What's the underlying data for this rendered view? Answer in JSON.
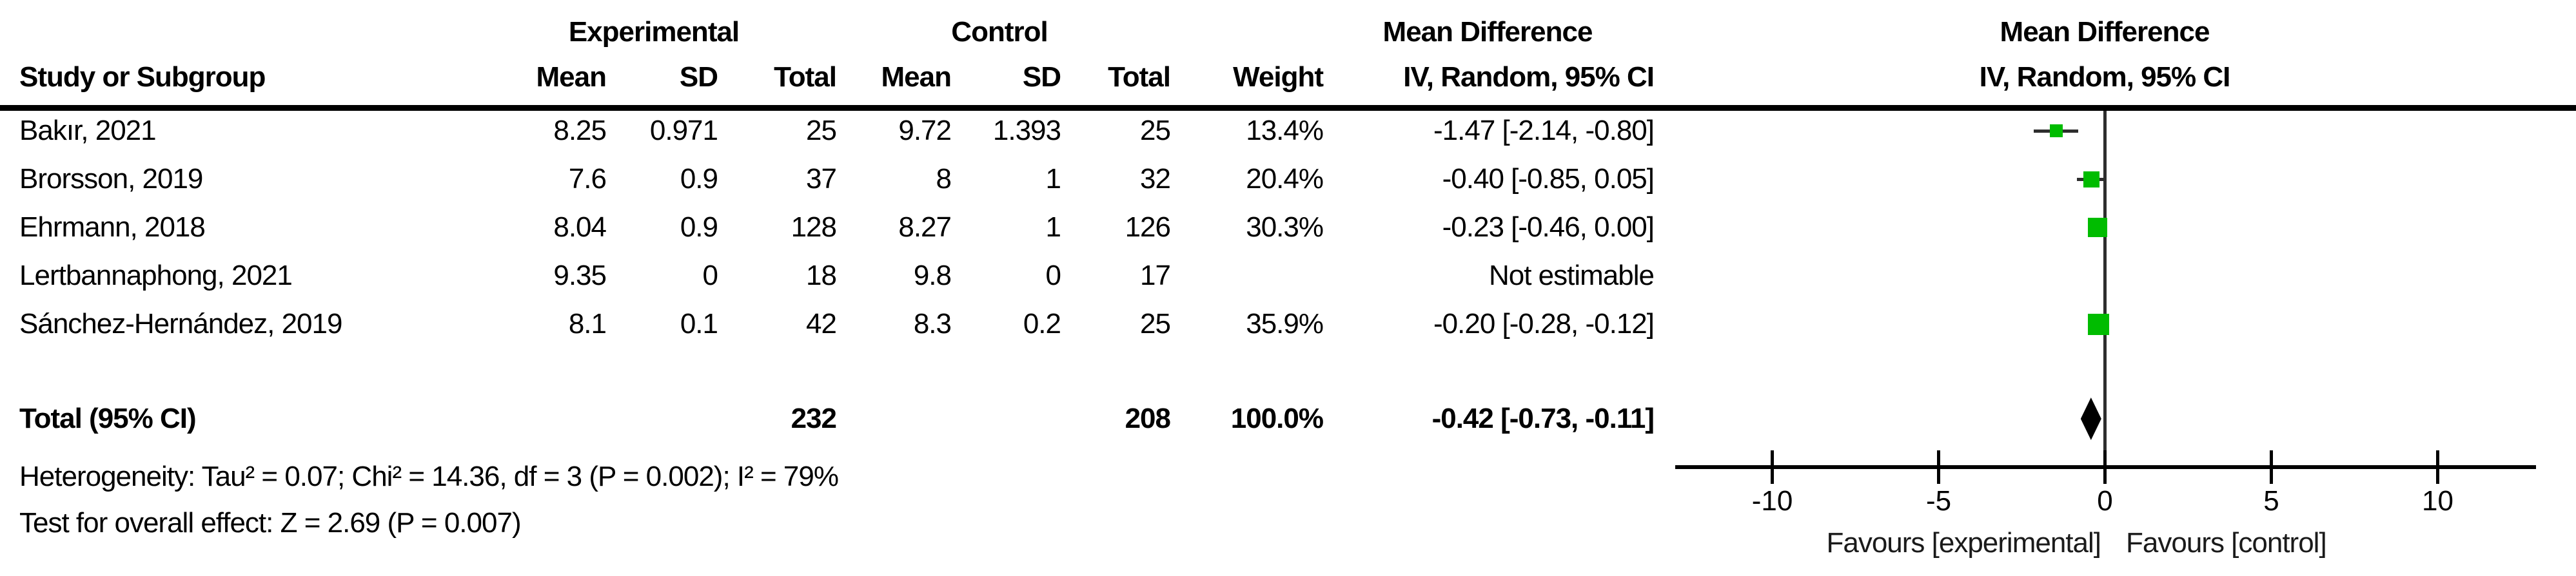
{
  "header": {
    "study_col": "Study or Subgroup",
    "group_experimental": "Experimental",
    "group_control": "Control",
    "mean": "Mean",
    "sd": "SD",
    "total": "Total",
    "weight": "Weight",
    "effect_col_title": "Mean Difference",
    "effect_col_subtitle": "IV, Random, 95% CI",
    "plot_col_title": "Mean Difference",
    "plot_col_subtitle": "IV, Random, 95% CI"
  },
  "studies": [
    {
      "name": "Bakır, 2021",
      "exp_mean": "8.25",
      "exp_sd": "0.971",
      "exp_total": "25",
      "ctl_mean": "9.72",
      "ctl_sd": "1.393",
      "ctl_total": "25",
      "weight": "13.4%",
      "ci_text": "-1.47 [-2.14, -0.80]"
    },
    {
      "name": "Brorsson, 2019",
      "exp_mean": "7.6",
      "exp_sd": "0.9",
      "exp_total": "37",
      "ctl_mean": "8",
      "ctl_sd": "1",
      "ctl_total": "32",
      "weight": "20.4%",
      "ci_text": "-0.40 [-0.85, 0.05]"
    },
    {
      "name": "Ehrmann, 2018",
      "exp_mean": "8.04",
      "exp_sd": "0.9",
      "exp_total": "128",
      "ctl_mean": "8.27",
      "ctl_sd": "1",
      "ctl_total": "126",
      "weight": "30.3%",
      "ci_text": "-0.23 [-0.46, 0.00]"
    },
    {
      "name": "Lertbannaphong, 2021",
      "exp_mean": "9.35",
      "exp_sd": "0",
      "exp_total": "18",
      "ctl_mean": "9.8",
      "ctl_sd": "0",
      "ctl_total": "17",
      "weight": "",
      "ci_text": "Not estimable"
    },
    {
      "name": "Sánchez-Hernández, 2019",
      "exp_mean": "8.1",
      "exp_sd": "0.1",
      "exp_total": "42",
      "ctl_mean": "8.3",
      "ctl_sd": "0.2",
      "ctl_total": "25",
      "weight": "35.9%",
      "ci_text": "-0.20 [-0.28, -0.12]"
    }
  ],
  "total_row": {
    "label": "Total (95% CI)",
    "exp_total": "232",
    "ctl_total": "208",
    "weight": "100.0%",
    "ci_text": "-0.42 [-0.73, -0.11]"
  },
  "footer": {
    "heterogeneity": "Heterogeneity: Tau² = 0.07; Chi² = 14.36, df = 3 (P = 0.002); I² = 79%",
    "overall_effect": "Test for overall effect: Z = 2.69 (P = 0.007)"
  },
  "chart_data": {
    "type": "scatter",
    "subtype": "forest-plot",
    "title": "Mean Difference",
    "method": "IV, Random, 95% CI",
    "points": [
      {
        "study": "Bakır, 2021",
        "md": -1.47,
        "ci": [
          -2.14,
          -0.8
        ],
        "weight_pct": 13.4,
        "estimable": true
      },
      {
        "study": "Brorsson, 2019",
        "md": -0.4,
        "ci": [
          -0.85,
          0.05
        ],
        "weight_pct": 20.4,
        "estimable": true
      },
      {
        "study": "Ehrmann, 2018",
        "md": -0.23,
        "ci": [
          -0.46,
          0.0
        ],
        "weight_pct": 30.3,
        "estimable": true
      },
      {
        "study": "Lertbannaphong, 2021",
        "md": null,
        "ci": null,
        "weight_pct": null,
        "estimable": false
      },
      {
        "study": "Sánchez-Hernández, 2019",
        "md": -0.2,
        "ci": [
          -0.28,
          -0.12
        ],
        "weight_pct": 35.9,
        "estimable": true
      }
    ],
    "summary": {
      "label": "Total (95% CI)",
      "md": -0.42,
      "ci": [
        -0.73,
        -0.11
      ],
      "weight_pct": 100.0
    },
    "x_axis": {
      "ticks": [
        -10,
        -5,
        0,
        5,
        10
      ],
      "range": [
        -12.9,
        13
      ],
      "label_left": "Favours [experimental]",
      "label_right": "Favours [control]",
      "grid": false
    },
    "colors": {
      "marker_green": "#00bc00",
      "ci_line": "#2e2e2e",
      "summary_black": "#000000"
    }
  }
}
